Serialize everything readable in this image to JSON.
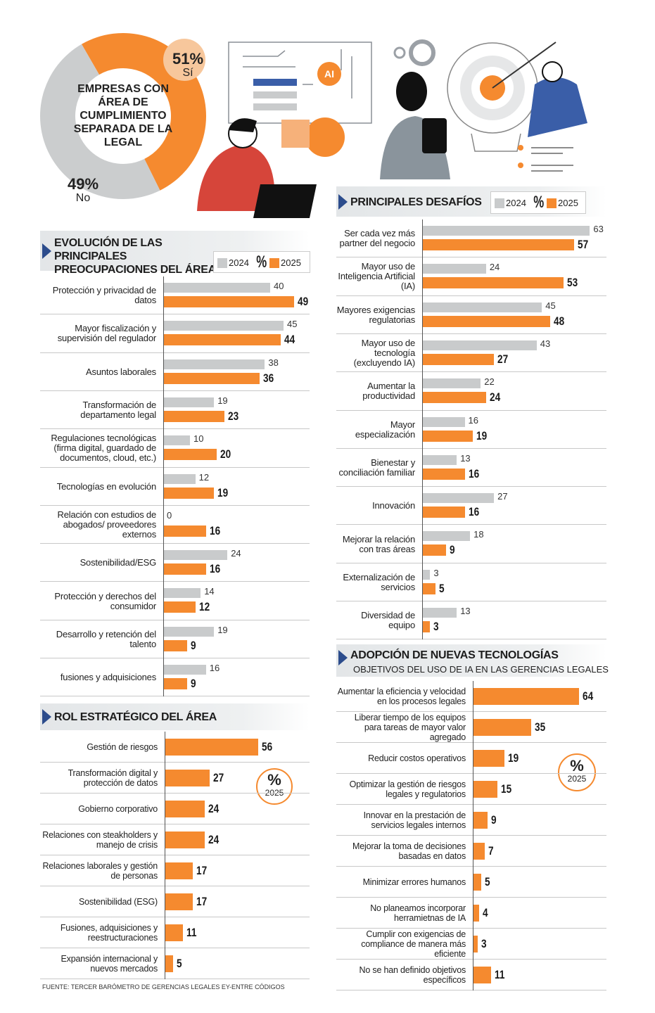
{
  "illustration": {
    "ai_label": "AI"
  },
  "source": "FUENTE: TERCER BARÓMETRO DE GERENCIAS LEGALES EY-ENTRE CÓDIGOS",
  "chart_data": [
    {
      "type": "donut",
      "title": "EMPRESAS CON ÁREA DE CUMPLIMIENTO SEPARADA DE LA LEGAL",
      "categories": [
        "Sí",
        "No"
      ],
      "values": [
        51,
        49
      ],
      "value_labels": [
        "51%",
        "49%"
      ],
      "colors": [
        "#f58a2f",
        "#cbcdce"
      ]
    },
    {
      "type": "hbar",
      "title": "EVOLUCIÓN DE LAS PRINCIPALES PREOCUPACIONES DEL ÁREA",
      "unit": "%",
      "legend": "header",
      "categories": [
        "Protección y privacidad de datos",
        "Mayor fiscalización y supervisión del regulador",
        "Asuntos laborales",
        "Transformación de departamento legal",
        "Regulaciones tecnológicas (firma digital, guardado de documentos, cloud, etc.)",
        "Tecnologías en evolución",
        "Relación con estudios de abogados/ proveedores externos",
        "Sostenibilidad/ESG",
        "Protección y derechos del consumidor",
        "Desarrollo y retención del talento",
        "fusiones y adquisiciones"
      ],
      "series": [
        {
          "name": "2024",
          "color": "#c9cbcc",
          "values": [
            40,
            45,
            38,
            19,
            10,
            12,
            0,
            24,
            14,
            19,
            16
          ]
        },
        {
          "name": "2025",
          "color": "#f58a2f",
          "values": [
            49,
            44,
            36,
            23,
            20,
            19,
            16,
            16,
            12,
            9,
            9
          ]
        }
      ],
      "xlim": [
        0,
        50
      ]
    },
    {
      "type": "hbar",
      "title": "PRINCIPALES DESAFÍOS",
      "unit": "%",
      "legend": "header",
      "categories": [
        "Ser cada vez más partner del negocio",
        "Mayor uso de Inteligencia Artificial (IA)",
        "Mayores exigencias regulatorias",
        "Mayor uso de tecnología (excluyendo IA)",
        "Aumentar la productividad",
        "Mayor especialización",
        "Bienestar y conciliación familiar",
        "Innovación",
        "Mejorar la relación con tras áreas",
        "Externalización de servicios",
        "Diversidad de equipo"
      ],
      "series": [
        {
          "name": "2024",
          "color": "#c9cbcc",
          "values": [
            63,
            24,
            45,
            43,
            22,
            16,
            13,
            27,
            18,
            3,
            13
          ]
        },
        {
          "name": "2025",
          "color": "#f58a2f",
          "values": [
            57,
            53,
            48,
            27,
            24,
            19,
            16,
            16,
            9,
            5,
            3
          ]
        }
      ],
      "xlim": [
        0,
        65
      ]
    },
    {
      "type": "hbar",
      "title": "ROL ESTRATÉGICO DEL ÁREA",
      "unit": "%",
      "legend": "inside",
      "categories": [
        "Gestión de riesgos",
        "Transformación digital y protección de datos",
        "Gobierno corporativo",
        "Relaciones con steakholders y manejo de crisis",
        "Relaciones laborales y gestión de personas",
        "Sostenibilidad (ESG)",
        "Fusiones, adquisiciones y reestructuraciones",
        "Expansión internacional y nuevos mercados"
      ],
      "series": [
        {
          "name": "2025",
          "color": "#f58a2f",
          "values": [
            56,
            27,
            24,
            24,
            17,
            17,
            11,
            5
          ]
        }
      ],
      "xlim": [
        0,
        60
      ]
    },
    {
      "type": "hbar",
      "title": "ADOPCIÓN DE NUEVAS TECNOLOGÍAS",
      "subtitle": "OBJETIVOS DEL USO DE IA EN LAS GERENCIAS LEGALES",
      "unit": "%",
      "legend": "inside",
      "categories": [
        "Aumentar la eficiencia y velocidad en los procesos legales",
        "Liberar tiempo de los equipos para tareas de mayor valor agregado",
        "Reducir costos operativos",
        "Optimizar la gestión de riesgos legales y regulatorios",
        "Innovar en la prestación de servicios legales internos",
        "Mejorar la toma de decisiones basadas en datos",
        "Minimizar errores humanos",
        "No planeamos incorporar herramietnas de IA",
        "Cumplir con exigencias de compliance de manera más eficiente",
        "No se han definido objetivos específicos"
      ],
      "series": [
        {
          "name": "2025",
          "color": "#f58a2f",
          "values": [
            64,
            35,
            19,
            15,
            9,
            7,
            5,
            4,
            3,
            11
          ]
        }
      ],
      "xlim": [
        0,
        70
      ]
    }
  ]
}
